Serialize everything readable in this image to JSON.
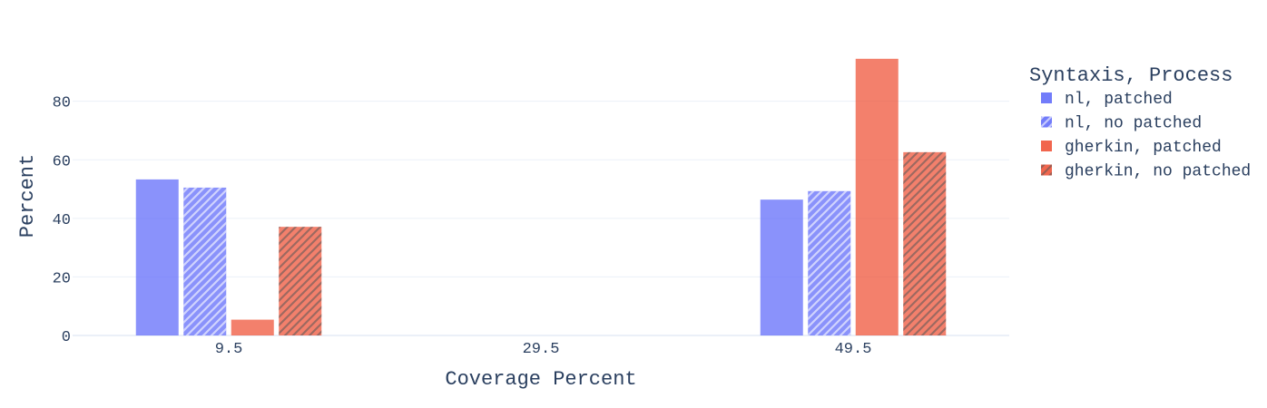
{
  "chart_data": {
    "type": "bar",
    "title": "",
    "xlabel": "Coverage Percent",
    "ylabel": "Percent",
    "categories": [
      "9.5",
      "29.5",
      "49.5"
    ],
    "ylim": [
      0,
      96
    ],
    "yticks": [
      0,
      20,
      40,
      60,
      80
    ],
    "grid": true,
    "legend": {
      "title": "Syntaxis, Process",
      "placement": "right"
    },
    "series": [
      {
        "name": "nl, patched",
        "color": "#636efa",
        "pattern": "none",
        "values": [
          53.3,
          null,
          46.4
        ]
      },
      {
        "name": "nl, no patched",
        "color": "#636efa",
        "pattern": "diagonal-hatch",
        "values": [
          50.5,
          null,
          49.3
        ]
      },
      {
        "name": "gherkin, patched",
        "color": "#ef553b",
        "pattern": "none",
        "values": [
          5.4,
          null,
          94.5
        ]
      },
      {
        "name": "gherkin, no patched",
        "color": "#ef553b",
        "pattern": "diagonal-hatch",
        "values": [
          37.1,
          null,
          62.6
        ]
      }
    ]
  }
}
